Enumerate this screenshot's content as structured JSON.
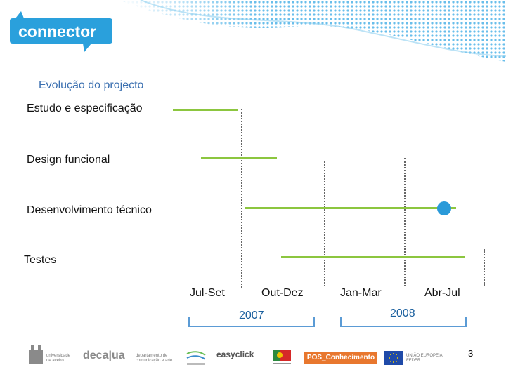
{
  "brand": {
    "logo_text": "connector"
  },
  "section_title": "Evolução do projecto",
  "tasks": [
    {
      "label": "Estudo e especificação"
    },
    {
      "label": "Design funcional"
    },
    {
      "label": "Desenvolvimento técnico"
    },
    {
      "label": "Testes"
    }
  ],
  "periods": [
    "Jul-Set",
    "Out-Dez",
    "Jan-Mar",
    "Abr-Jul"
  ],
  "years": [
    "2007",
    "2008"
  ],
  "footer": {
    "logos": [
      {
        "line1": "universidade",
        "line2": "de aveiro"
      },
      {
        "wordmark": "deca|ua",
        "line1": "departamento de",
        "line2": "comunicação e arte"
      },
      {
        "wordmark": "easyclick"
      },
      {
        "wordmark": "POS_Conhecimento"
      },
      {
        "line1": "UNIÃO EUROPEIA",
        "line2": "FEDER"
      }
    ],
    "page_number": "3"
  },
  "colors": {
    "accent_green": "#8cc63f",
    "milestone_blue": "#2a9ad9",
    "title_blue": "#3a6fb0",
    "year_blue": "#1a5f9e"
  }
}
